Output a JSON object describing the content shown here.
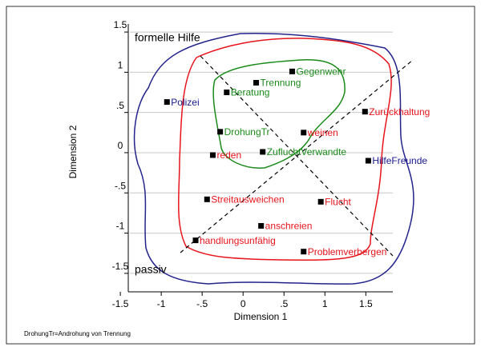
{
  "chart_data": {
    "type": "scatter",
    "xlabel": "Dimension 1",
    "ylabel": "Dimension 2",
    "annotations": [
      "formelle Hilfe",
      "passiv"
    ],
    "note": "DrohungTr=Androhung von Trennung",
    "xlim": [
      -1.55,
      1.83
    ],
    "ylim": [
      -1.73,
      1.62
    ],
    "xticks": [
      -1.5,
      -1,
      {
        "value": -0.5,
        "label": "-.5"
      },
      0,
      {
        "value": 0.5,
        "label": ".5"
      },
      1,
      1.5
    ],
    "yticks": [
      -1.5,
      -1,
      {
        "value": -0.5,
        "label": "-.5"
      },
      0,
      {
        "value": 0.5,
        "label": ".5"
      },
      1,
      1.5
    ],
    "grid": true,
    "points": [
      {
        "label": "Polizei",
        "x": -0.93,
        "y": 0.63,
        "color": "#1a1a8c"
      },
      {
        "label": "Gegenwehr",
        "x": 0.6,
        "y": 1.01,
        "color": "#1a8a1a"
      },
      {
        "label": "Trennung",
        "x": 0.16,
        "y": 0.87,
        "color": "#1a8a1a"
      },
      {
        "label": "Beratung",
        "x": -0.2,
        "y": 0.75,
        "color": "#1a8a1a"
      },
      {
        "label": "Zurückhaltung",
        "x": 1.49,
        "y": 0.51,
        "color": "#e8141c"
      },
      {
        "label": "DrohungTr",
        "x": -0.28,
        "y": 0.26,
        "color": "#1a8a1a"
      },
      {
        "label": "weinen",
        "x": 0.74,
        "y": 0.25,
        "color": "#e8141c"
      },
      {
        "label": "reden",
        "x": -0.37,
        "y": -0.03,
        "color": "#e8141c"
      },
      {
        "label": "ZufluchtVerwandte",
        "x": 0.24,
        "y": 0.01,
        "color": "#1a8a1a"
      },
      {
        "label": "HilfeFreunde",
        "x": 1.53,
        "y": -0.1,
        "color": "#1a1a8c"
      },
      {
        "label": "Streitausweichen",
        "x": -0.44,
        "y": -0.58,
        "color": "#e8141c"
      },
      {
        "label": "Flucht",
        "x": 0.95,
        "y": -0.61,
        "color": "#e8141c"
      },
      {
        "label": "anschreien",
        "x": 0.22,
        "y": -0.91,
        "color": "#e8141c"
      },
      {
        "label": "handlungsunfähig",
        "x": -0.58,
        "y": -1.09,
        "color": "#e8141c"
      },
      {
        "label": "Problemverbergen",
        "x": 0.74,
        "y": -1.23,
        "color": "#e8141c"
      }
    ]
  }
}
